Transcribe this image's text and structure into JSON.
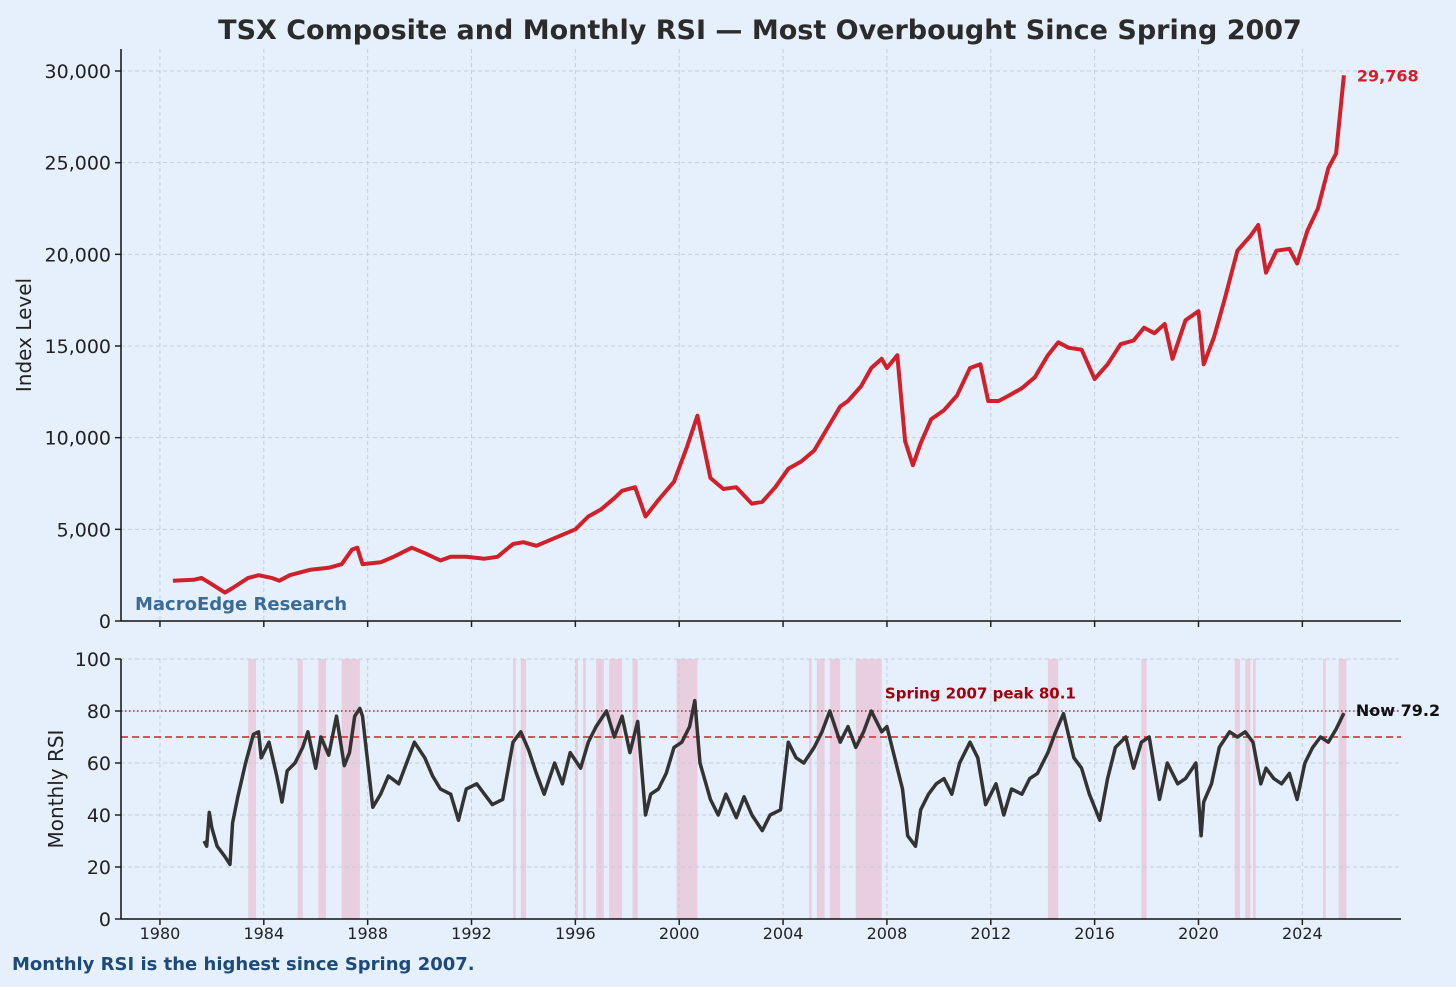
{
  "chart_data": [
    {
      "id": "index",
      "type": "line",
      "title": "TSX Composite and Monthly RSI — Most Overbought Since Spring 2007",
      "ylabel": "Index Level",
      "xlabel": "",
      "xlim": [
        1978.5,
        2027.8
      ],
      "ylim": [
        0,
        31200
      ],
      "yticks": [
        0,
        5000,
        10000,
        15000,
        20000,
        25000,
        30000
      ],
      "ytick_labels": [
        "0",
        "5,000",
        "10,000",
        "15,000",
        "20,000",
        "25,000",
        "30,000"
      ],
      "xticks": [
        1980,
        1984,
        1988,
        1992,
        1996,
        2000,
        2004,
        2008,
        2012,
        2016,
        2020,
        2024
      ],
      "grid": true,
      "watermark": "MacroEdge Research",
      "last_value_label": "29,768",
      "series": [
        {
          "name": "TSX Composite",
          "color": "#d0202a",
          "x": [
            1980.5,
            1981.3,
            1981.6,
            1982.0,
            1982.5,
            1982.8,
            1983.4,
            1983.8,
            1984.3,
            1984.6,
            1985.0,
            1985.8,
            1986.5,
            1987.0,
            1987.4,
            1987.6,
            1987.8,
            1988.5,
            1989.0,
            1989.7,
            1990.2,
            1990.8,
            1991.2,
            1991.8,
            1992.5,
            1993.0,
            1993.6,
            1994.0,
            1994.5,
            1995.0,
            1995.5,
            1996.0,
            1996.5,
            1997.0,
            1997.5,
            1997.8,
            1998.3,
            1998.7,
            1999.2,
            1999.8,
            2000.3,
            2000.7,
            2001.2,
            2001.7,
            2002.2,
            2002.8,
            2003.2,
            2003.7,
            2004.2,
            2004.7,
            2005.2,
            2005.7,
            2006.2,
            2006.5,
            2007.0,
            2007.4,
            2007.8,
            2008.0,
            2008.4,
            2008.7,
            2009.0,
            2009.3,
            2009.7,
            2010.2,
            2010.7,
            2011.2,
            2011.6,
            2011.9,
            2012.3,
            2012.7,
            2013.2,
            2013.7,
            2014.2,
            2014.6,
            2015.0,
            2015.5,
            2016.0,
            2016.5,
            2017.0,
            2017.5,
            2017.9,
            2018.3,
            2018.7,
            2019.0,
            2019.5,
            2020.0,
            2020.2,
            2020.6,
            2021.0,
            2021.5,
            2022.0,
            2022.3,
            2022.6,
            2023.0,
            2023.5,
            2023.8,
            2024.2,
            2024.6,
            2025.0,
            2025.3,
            2025.6
          ],
          "y": [
            2200,
            2250,
            2350,
            2000,
            1550,
            1800,
            2350,
            2500,
            2350,
            2200,
            2500,
            2800,
            2900,
            3100,
            3900,
            4000,
            3100,
            3200,
            3500,
            4000,
            3700,
            3300,
            3500,
            3500,
            3400,
            3500,
            4200,
            4300,
            4100,
            4400,
            4700,
            5000,
            5700,
            6100,
            6700,
            7100,
            7300,
            5700,
            6600,
            7600,
            9500,
            11200,
            7800,
            7200,
            7300,
            6400,
            6500,
            7300,
            8300,
            8700,
            9300,
            10500,
            11700,
            12000,
            12800,
            13800,
            14300,
            13800,
            14500,
            9800,
            8500,
            9700,
            11000,
            11500,
            12300,
            13800,
            14000,
            12000,
            12000,
            12300,
            12700,
            13300,
            14500,
            15200,
            14900,
            14800,
            13200,
            14000,
            15100,
            15300,
            16000,
            15700,
            16200,
            14300,
            16400,
            16900,
            14000,
            15500,
            17500,
            20200,
            21000,
            21600,
            19000,
            20200,
            20300,
            19500,
            21300,
            22500,
            24700,
            25500,
            29768
          ]
        }
      ]
    },
    {
      "id": "rsi",
      "type": "line",
      "ylabel": "Monthly RSI",
      "xlabel": "",
      "xlim": [
        1978.5,
        2027.8
      ],
      "ylim": [
        0,
        100
      ],
      "yticks": [
        0,
        20,
        40,
        60,
        80,
        100
      ],
      "xticks": [
        1980,
        1984,
        1988,
        1992,
        1996,
        2000,
        2004,
        2008,
        2012,
        2016,
        2020,
        2024
      ],
      "xtick_labels": [
        "1980",
        "1984",
        "1988",
        "1992",
        "1996",
        "2000",
        "2004",
        "2008",
        "2012",
        "2016",
        "2020",
        "2024"
      ],
      "grid": true,
      "hlines": [
        {
          "y": 80,
          "style": "dotted",
          "color": "#d0202a"
        },
        {
          "y": 70,
          "style": "dashed",
          "color": "#d0202a"
        }
      ],
      "overbought_spans": [
        [
          1983.4,
          1983.7
        ],
        [
          1985.3,
          1985.5
        ],
        [
          1986.1,
          1986.4
        ],
        [
          1987.0,
          1987.7
        ],
        [
          1993.6,
          1993.7
        ],
        [
          1993.9,
          1994.1
        ],
        [
          1996.0,
          1996.1
        ],
        [
          1996.3,
          1996.4
        ],
        [
          1996.8,
          1997.1
        ],
        [
          1997.3,
          1997.8
        ],
        [
          1998.2,
          1998.4
        ],
        [
          1999.9,
          2000.7
        ],
        [
          2005.0,
          2005.1
        ],
        [
          2005.3,
          2005.6
        ],
        [
          2005.8,
          2006.2
        ],
        [
          2006.8,
          2007.8
        ],
        [
          2014.2,
          2014.6
        ],
        [
          2017.8,
          2018.0
        ],
        [
          2021.4,
          2021.6
        ],
        [
          2021.8,
          2022.0
        ],
        [
          2022.1,
          2022.2
        ],
        [
          2024.8,
          2024.9
        ],
        [
          2025.4,
          2025.7
        ]
      ],
      "annotations": [
        {
          "text": "Spring 2007 peak 80.1",
          "x": 2008.0,
          "y": 86
        },
        {
          "text": "Now 79.2",
          "x": 2025.6,
          "y": 79.2
        }
      ],
      "series": [
        {
          "name": "Monthly RSI",
          "color": "#333333",
          "x": [
            1981.7,
            1981.8,
            1981.9,
            1982.0,
            1982.2,
            1982.5,
            1982.7,
            1982.8,
            1983.0,
            1983.3,
            1983.6,
            1983.8,
            1983.9,
            1984.2,
            1984.5,
            1984.7,
            1984.9,
            1985.2,
            1985.5,
            1985.7,
            1986.0,
            1986.2,
            1986.5,
            1986.8,
            1987.1,
            1987.3,
            1987.5,
            1987.7,
            1987.8,
            1988.2,
            1988.5,
            1988.8,
            1989.2,
            1989.5,
            1989.8,
            1990.2,
            1990.5,
            1990.8,
            1991.2,
            1991.5,
            1991.8,
            1992.2,
            1992.5,
            1992.8,
            1993.2,
            1993.6,
            1993.9,
            1994.2,
            1994.5,
            1994.8,
            1995.2,
            1995.5,
            1995.8,
            1996.2,
            1996.5,
            1996.8,
            1997.2,
            1997.5,
            1997.8,
            1998.1,
            1998.4,
            1998.7,
            1998.9,
            1999.2,
            1999.5,
            1999.8,
            2000.1,
            2000.4,
            2000.6,
            2000.8,
            2001.2,
            2001.5,
            2001.8,
            2002.2,
            2002.5,
            2002.8,
            2003.2,
            2003.5,
            2003.9,
            2004.2,
            2004.5,
            2004.8,
            2005.2,
            2005.5,
            2005.8,
            2006.2,
            2006.5,
            2006.8,
            2007.1,
            2007.4,
            2007.8,
            2008.0,
            2008.3,
            2008.6,
            2008.8,
            2009.1,
            2009.3,
            2009.6,
            2009.9,
            2010.2,
            2010.5,
            2010.8,
            2011.2,
            2011.5,
            2011.8,
            2012.2,
            2012.5,
            2012.8,
            2013.2,
            2013.5,
            2013.8,
            2014.2,
            2014.5,
            2014.8,
            2015.2,
            2015.5,
            2015.8,
            2016.2,
            2016.5,
            2016.8,
            2017.2,
            2017.5,
            2017.8,
            2018.1,
            2018.5,
            2018.8,
            2019.2,
            2019.5,
            2019.9,
            2020.1,
            2020.2,
            2020.5,
            2020.8,
            2021.2,
            2021.5,
            2021.8,
            2022.1,
            2022.4,
            2022.6,
            2022.9,
            2023.2,
            2023.5,
            2023.8,
            2024.1,
            2024.4,
            2024.7,
            2025.0,
            2025.3,
            2025.6
          ],
          "y": [
            30,
            28,
            41,
            35,
            28,
            24,
            21,
            37,
            47,
            60,
            71,
            72,
            62,
            68,
            55,
            45,
            57,
            60,
            66,
            72,
            58,
            70,
            63,
            78,
            59,
            64,
            78,
            81,
            78,
            43,
            48,
            55,
            52,
            60,
            68,
            62,
            55,
            50,
            48,
            38,
            50,
            52,
            48,
            44,
            46,
            68,
            72,
            65,
            56,
            48,
            60,
            52,
            64,
            58,
            68,
            74,
            80,
            70,
            78,
            64,
            76,
            40,
            48,
            50,
            56,
            66,
            68,
            74,
            84,
            60,
            46,
            40,
            48,
            39,
            47,
            40,
            34,
            40,
            42,
            68,
            62,
            60,
            66,
            72,
            80,
            68,
            74,
            66,
            72,
            80,
            72,
            74,
            62,
            50,
            32,
            28,
            42,
            48,
            52,
            54,
            48,
            60,
            68,
            62,
            44,
            52,
            40,
            50,
            48,
            54,
            56,
            64,
            72,
            79,
            62,
            58,
            48,
            38,
            54,
            66,
            70,
            58,
            68,
            70,
            46,
            60,
            52,
            54,
            60,
            32,
            45,
            52,
            66,
            72,
            70,
            72,
            68,
            52,
            58,
            54,
            52,
            56,
            46,
            60,
            66,
            70,
            68,
            73,
            79.2
          ]
        }
      ]
    }
  ],
  "footnote": "Monthly RSI is the highest since Spring 2007.",
  "colors": {
    "background": "#e6f0fc",
    "index_line": "#d0202a",
    "rsi_line": "#333333",
    "shading": "#e8c8d8",
    "footnote": "#1d4a78"
  }
}
